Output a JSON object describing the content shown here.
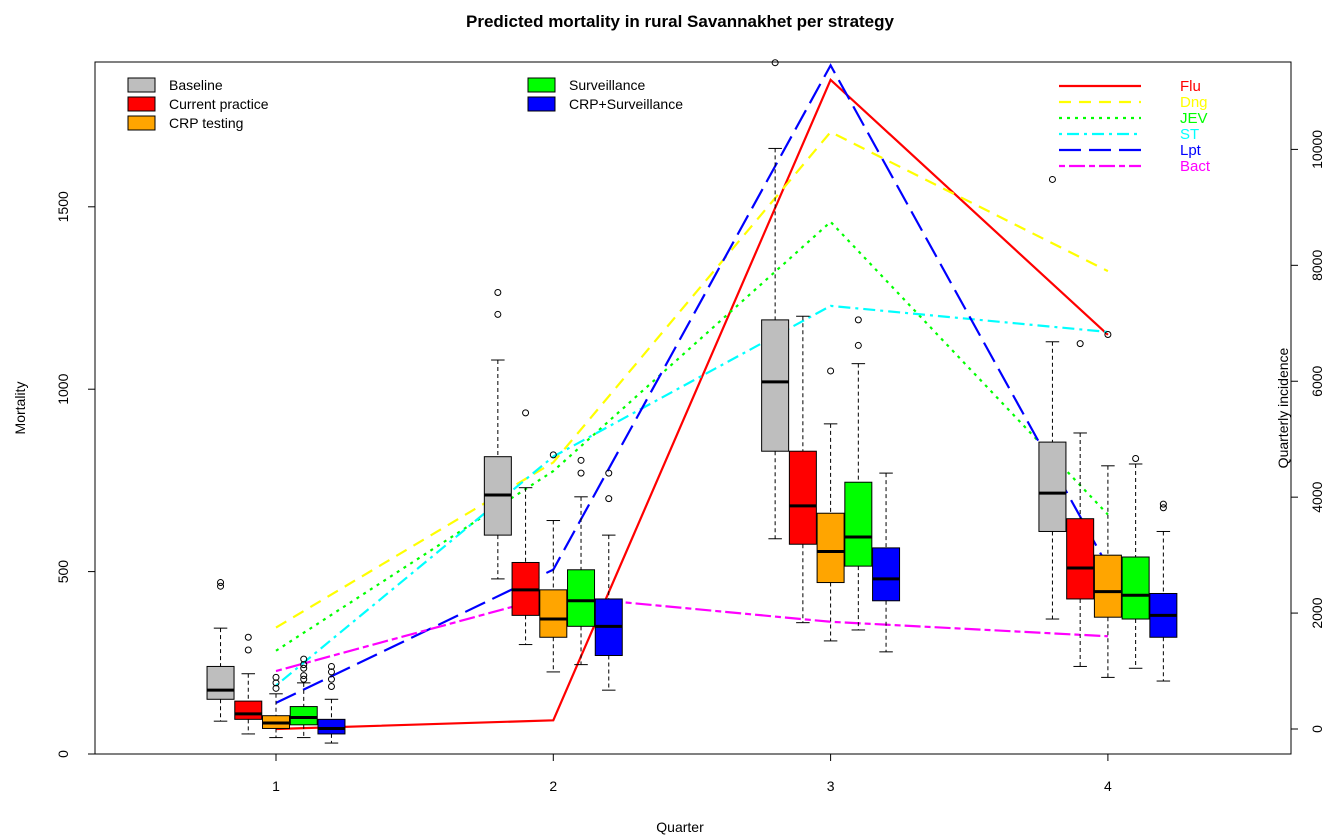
{
  "chart_data": {
    "type": "box+line",
    "title": "Predicted mortality in rural Savannakhet per strategy",
    "xlabel": "Quarter",
    "ylabel": "Mortality",
    "y2label": "Quarterly incidence",
    "categories": [
      "1",
      "2",
      "3",
      "4"
    ],
    "ylim": [
      0,
      1900
    ],
    "y2lim": [
      -500,
      11300
    ],
    "yticks": [
      "0",
      "500",
      "1000",
      "1500"
    ],
    "y2ticks": [
      "0",
      "2000",
      "4000",
      "6000",
      "8000",
      "10000"
    ],
    "grid": false,
    "box_legend_position": "top-left",
    "line_legend_position": "top-right",
    "box_series": [
      {
        "name": "Baseline",
        "color": "#bebebe",
        "boxes": [
          {
            "min": 90,
            "q1": 150,
            "median": 175,
            "q3": 240,
            "max": 345,
            "outliers": [
              460,
              470
            ]
          },
          {
            "min": 480,
            "q1": 600,
            "median": 710,
            "q3": 815,
            "max": 1080,
            "outliers": [
              1205,
              1265
            ]
          },
          {
            "min": 590,
            "q1": 830,
            "median": 1020,
            "q3": 1190,
            "max": 1660,
            "outliers": [
              1895
            ]
          },
          {
            "min": 370,
            "q1": 610,
            "median": 715,
            "q3": 855,
            "max": 1130,
            "outliers": [
              1575
            ]
          }
        ]
      },
      {
        "name": "Current practice",
        "color": "#ff0000",
        "boxes": [
          {
            "min": 55,
            "q1": 95,
            "median": 110,
            "q3": 145,
            "max": 220,
            "outliers": [
              285,
              320
            ]
          },
          {
            "min": 300,
            "q1": 380,
            "median": 450,
            "q3": 525,
            "max": 730,
            "outliers": [
              935
            ]
          },
          {
            "min": 360,
            "q1": 575,
            "median": 680,
            "q3": 830,
            "max": 1200,
            "outliers": []
          },
          {
            "min": 240,
            "q1": 425,
            "median": 510,
            "q3": 645,
            "max": 880,
            "outliers": [
              1125
            ]
          }
        ]
      },
      {
        "name": "CRP testing",
        "color": "#ffa500",
        "boxes": [
          {
            "min": 45,
            "q1": 70,
            "median": 85,
            "q3": 105,
            "max": 165,
            "outliers": [
              180,
              195,
              210
            ]
          },
          {
            "min": 225,
            "q1": 320,
            "median": 370,
            "q3": 450,
            "max": 640,
            "outliers": [
              820
            ]
          },
          {
            "min": 310,
            "q1": 470,
            "median": 555,
            "q3": 660,
            "max": 905,
            "outliers": [
              1050
            ]
          },
          {
            "min": 210,
            "q1": 375,
            "median": 445,
            "q3": 545,
            "max": 790,
            "outliers": [
              1150
            ]
          }
        ]
      },
      {
        "name": "Surveillance",
        "color": "#00ff00",
        "boxes": [
          {
            "min": 45,
            "q1": 80,
            "median": 100,
            "q3": 130,
            "max": 195,
            "outliers": [
              205,
              215,
              235,
              245,
              260
            ]
          },
          {
            "min": 245,
            "q1": 350,
            "median": 420,
            "q3": 505,
            "max": 705,
            "outliers": [
              770,
              805
            ]
          },
          {
            "min": 340,
            "q1": 515,
            "median": 595,
            "q3": 745,
            "max": 1070,
            "outliers": [
              1120,
              1190
            ]
          },
          {
            "min": 235,
            "q1": 370,
            "median": 435,
            "q3": 540,
            "max": 795,
            "outliers": [
              810
            ]
          }
        ]
      },
      {
        "name": "CRP+Surveillance",
        "color": "#0000ff",
        "boxes": [
          {
            "min": 30,
            "q1": 55,
            "median": 70,
            "q3": 95,
            "max": 150,
            "outliers": [
              185,
              205,
              225,
              240
            ]
          },
          {
            "min": 175,
            "q1": 270,
            "median": 350,
            "q3": 425,
            "max": 600,
            "outliers": [
              700,
              770
            ]
          },
          {
            "min": 280,
            "q1": 420,
            "median": 480,
            "q3": 565,
            "max": 770,
            "outliers": []
          },
          {
            "min": 200,
            "q1": 320,
            "median": 380,
            "q3": 440,
            "max": 610,
            "outliers": [
              675,
              685
            ]
          }
        ]
      }
    ],
    "line_series": [
      {
        "name": "Flu",
        "color": "#ff0000",
        "dash": "solid",
        "values": [
          0,
          150,
          11200,
          6800
        ]
      },
      {
        "name": "Dng",
        "color": "#ffff00",
        "dash": "dashed",
        "values": [
          1750,
          4600,
          10300,
          7900
        ]
      },
      {
        "name": "JEV",
        "color": "#00ff00",
        "dash": "dotted",
        "values": [
          1350,
          4450,
          8750,
          3700
        ]
      },
      {
        "name": "ST",
        "color": "#00ffff",
        "dash": "dotdash",
        "values": [
          750,
          4700,
          7300,
          6850
        ]
      },
      {
        "name": "Lpt",
        "color": "#0000ff",
        "dash": "longdash",
        "values": [
          450,
          2750,
          11450,
          2800
        ]
      },
      {
        "name": "Bact",
        "color": "#ff00ff",
        "dash": "twodash",
        "values": [
          1000,
          2300,
          1850,
          1600
        ]
      }
    ]
  }
}
